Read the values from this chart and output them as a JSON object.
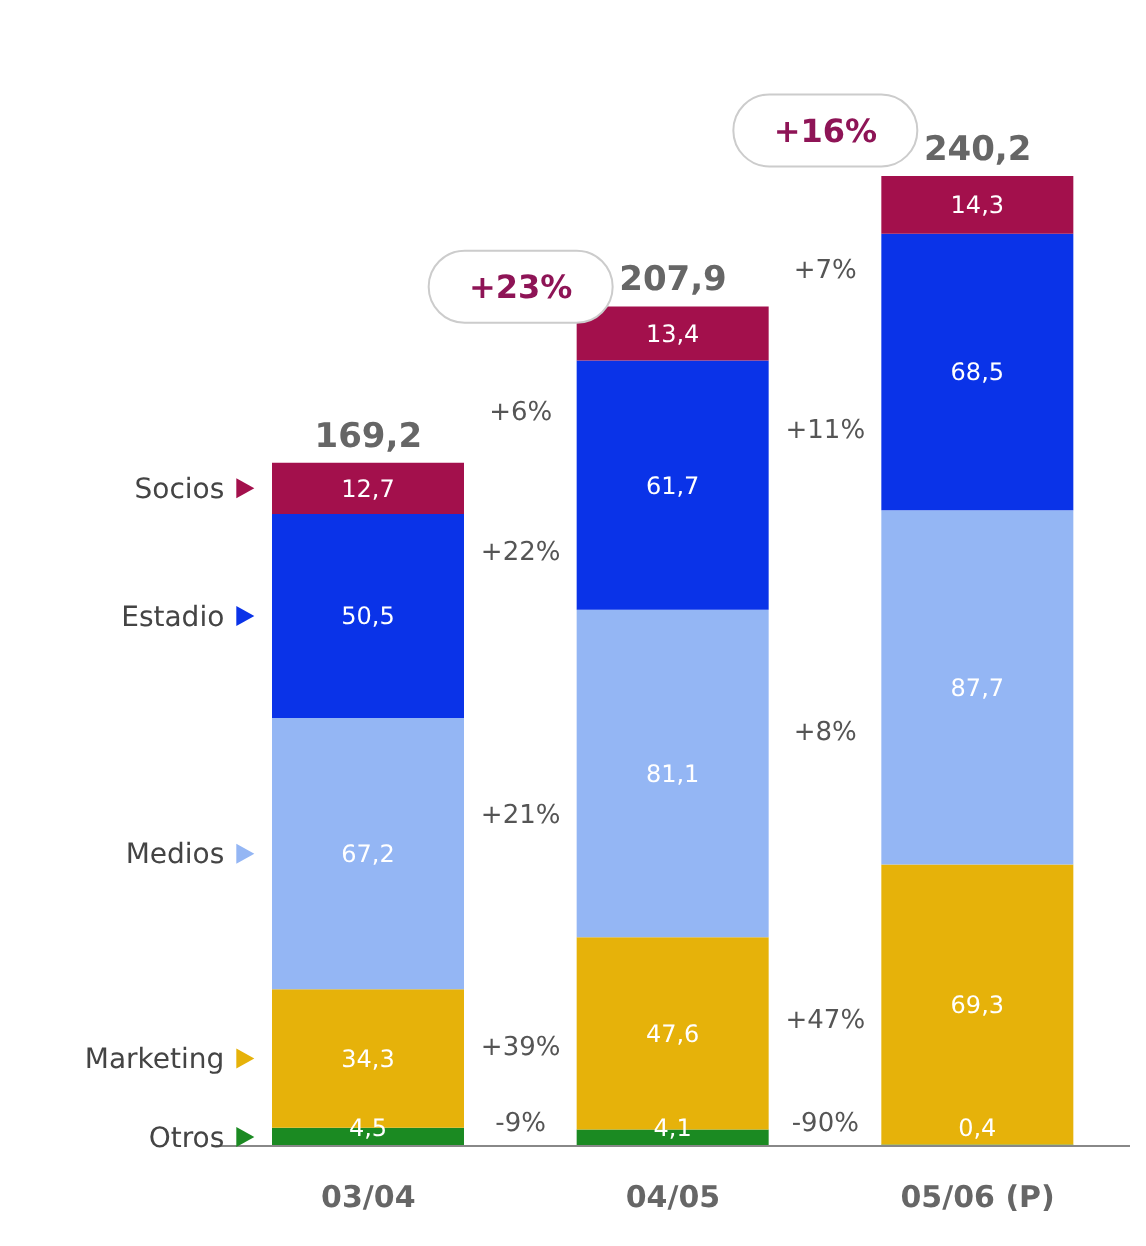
{
  "chart_data": {
    "type": "bar",
    "stacked": true,
    "categories": [
      "03/04",
      "04/05",
      "05/06 (P)"
    ],
    "series": [
      {
        "name": "Otros",
        "color": "#1b8a22",
        "values": [
          4.5,
          4.1,
          0.4
        ],
        "value_labels": [
          "4,5",
          "4,1",
          "0,4"
        ]
      },
      {
        "name": "Marketing",
        "color": "#e6b20a",
        "values": [
          34.3,
          47.6,
          69.3
        ],
        "value_labels": [
          "34,3",
          "47,6",
          "69,3"
        ]
      },
      {
        "name": "Medios",
        "color": "#94b6f4",
        "values": [
          67.2,
          81.1,
          87.7
        ],
        "value_labels": [
          "67,2",
          "81,1",
          "87,7"
        ]
      },
      {
        "name": "Estadio",
        "color": "#0a33e8",
        "values": [
          50.5,
          61.7,
          68.5
        ],
        "value_labels": [
          "50,5",
          "61,7",
          "68,5"
        ]
      },
      {
        "name": "Socios",
        "color": "#a3104c",
        "values": [
          12.7,
          13.4,
          14.3
        ],
        "value_labels": [
          "12,7",
          "13,4",
          "14,3"
        ]
      }
    ],
    "totals": [
      "169,2",
      "207,9",
      "240,2"
    ],
    "annotations": [
      "+23%",
      "+16%",
      "+6%",
      "+22%",
      "+21%",
      "+39%",
      "-9%",
      "+7%",
      "+11%",
      "+8%",
      "+47%",
      "-90%"
    ],
    "legend": "left"
  }
}
